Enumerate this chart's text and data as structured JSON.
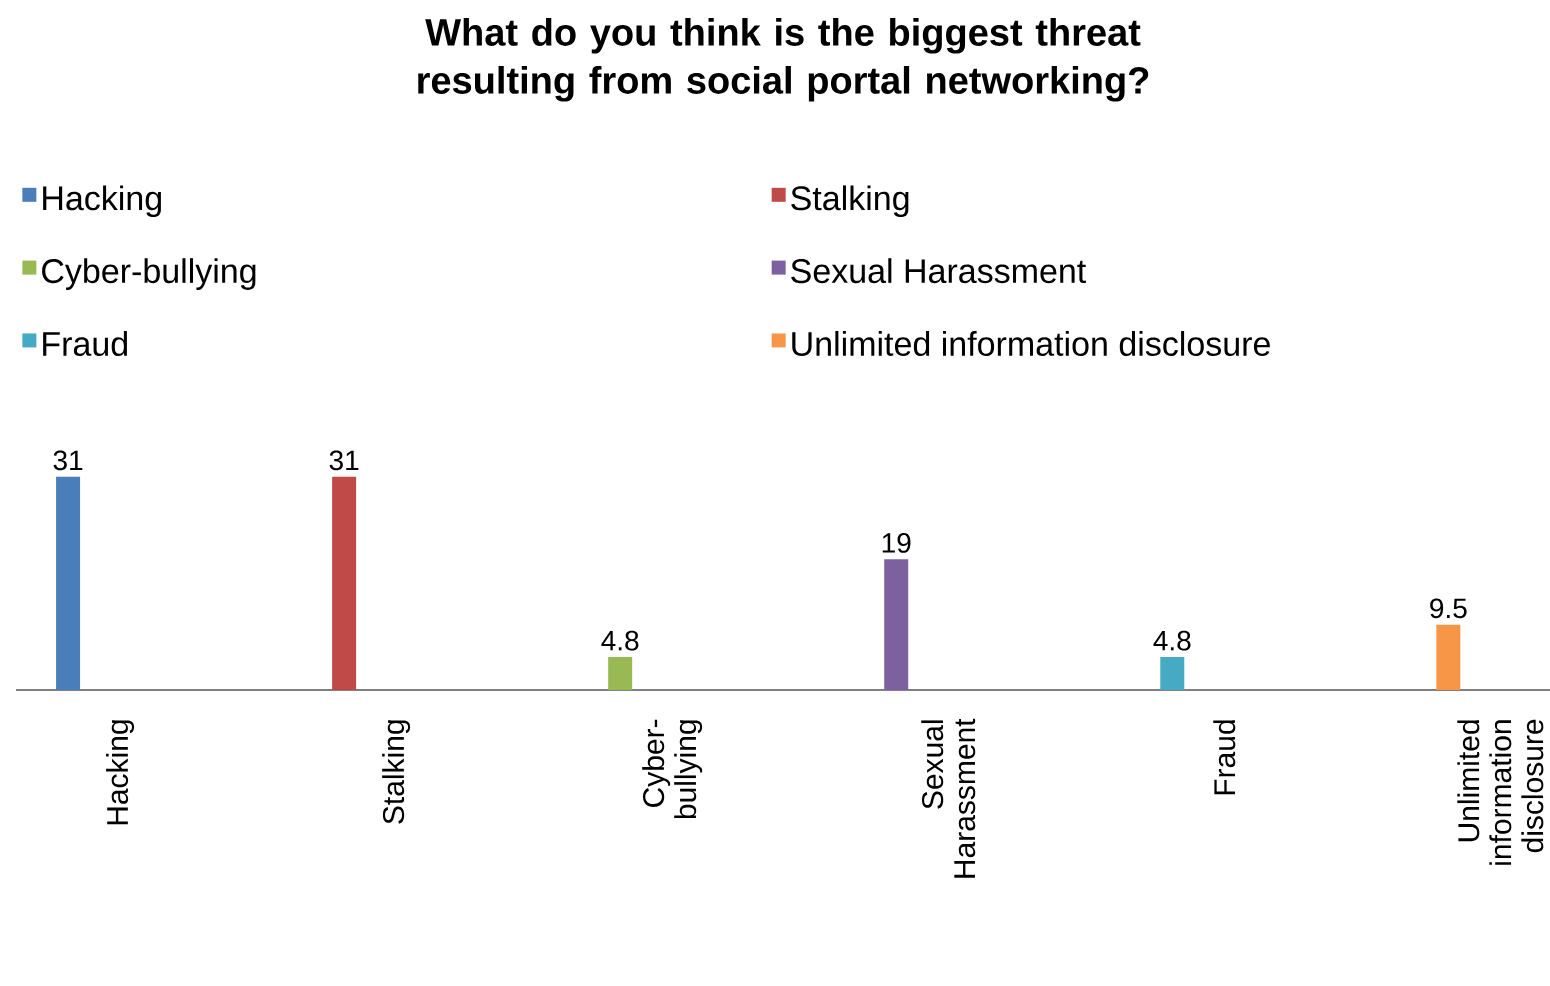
{
  "chart_data": {
    "type": "bar",
    "title": "What do you think is the biggest threat resulting from social portal networking?",
    "categories": [
      "Hacking",
      "Stalking",
      "Cyber-bullying",
      "Sexual Harassment",
      "Fraud",
      "Unlimited information disclosure"
    ],
    "series": [
      {
        "name": "Hacking",
        "color": "#4a7ebb",
        "values": [
          31,
          null,
          null,
          null,
          null,
          null
        ]
      },
      {
        "name": "Stalking",
        "color": "#be4b48",
        "values": [
          null,
          31,
          null,
          null,
          null,
          null
        ]
      },
      {
        "name": "Cyber-bullying",
        "color": "#98b954",
        "values": [
          null,
          null,
          4.8,
          null,
          null,
          null
        ]
      },
      {
        "name": "Sexual Harassment",
        "color": "#7d60a0",
        "values": [
          null,
          null,
          null,
          19,
          null,
          null
        ]
      },
      {
        "name": "Fraud",
        "color": "#46aac5",
        "values": [
          null,
          null,
          null,
          null,
          4.8,
          null
        ]
      },
      {
        "name": "Unlimited information disclosure",
        "color": "#f79646",
        "values": [
          null,
          null,
          null,
          null,
          null,
          9.5
        ]
      }
    ],
    "data_labels": true,
    "legend": "top"
  }
}
